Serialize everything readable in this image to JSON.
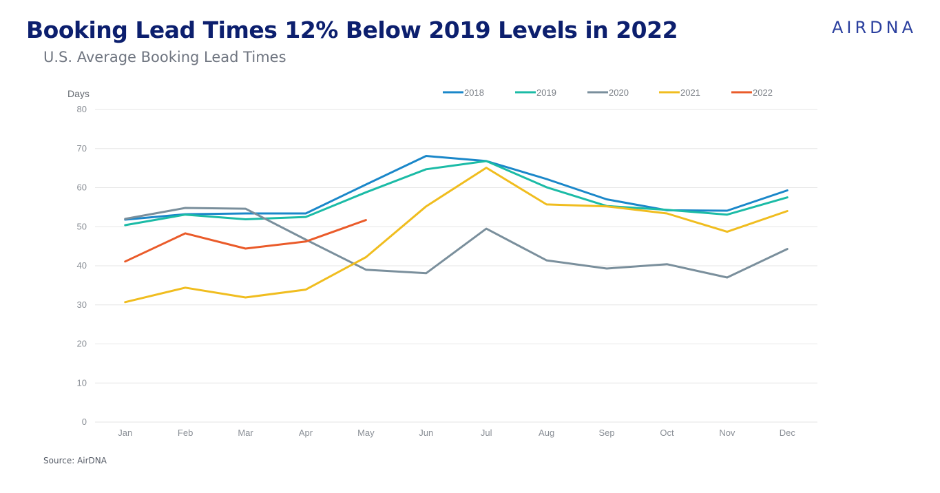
{
  "header": {
    "title": "Booking Lead Times 12% Below 2019 Levels in 2022",
    "subtitle": "U.S. Average Booking Lead Times",
    "brand": "AIRDNA"
  },
  "footer": {
    "source": "Source: AirDNA"
  },
  "chart_data": {
    "type": "line",
    "title": "Booking Lead Times 12% Below 2019 Levels in 2022",
    "subtitle": "U.S. Average Booking Lead Times",
    "xlabel": "",
    "ylabel": "Days",
    "ylim": [
      0,
      80
    ],
    "yticks": [
      0,
      10,
      20,
      30,
      40,
      50,
      60,
      70,
      80
    ],
    "grid": true,
    "legend_position": "top",
    "categories": [
      "Jan",
      "Feb",
      "Mar",
      "Apr",
      "May",
      "Jun",
      "Jul",
      "Aug",
      "Sep",
      "Oct",
      "Nov",
      "Dec"
    ],
    "series": [
      {
        "name": "2018",
        "color": "#1a87c9",
        "values": [
          51.8,
          53.2,
          53.4,
          53.4,
          60.8,
          68.1,
          66.8,
          62.2,
          57.0,
          54.2,
          54.1,
          59.3
        ]
      },
      {
        "name": "2019",
        "color": "#1bbba6",
        "values": [
          50.4,
          53.1,
          51.9,
          52.5,
          58.8,
          64.7,
          66.8,
          60.1,
          55.3,
          54.3,
          53.1,
          57.5
        ]
      },
      {
        "name": "2020",
        "color": "#7a8f9c",
        "values": [
          52.0,
          54.8,
          54.6,
          46.7,
          39.0,
          38.1,
          49.5,
          41.4,
          39.3,
          40.4,
          37.0,
          44.3
        ]
      },
      {
        "name": "2021",
        "color": "#f0bd1f",
        "values": [
          30.7,
          34.4,
          31.9,
          33.9,
          42.2,
          55.2,
          65.1,
          55.7,
          55.2,
          53.4,
          48.7,
          54.0
        ]
      },
      {
        "name": "2022",
        "color": "#ea5b2a",
        "values": [
          41.1,
          48.3,
          44.4,
          46.2,
          51.7,
          null,
          null,
          null,
          null,
          null,
          null,
          null
        ]
      }
    ]
  }
}
